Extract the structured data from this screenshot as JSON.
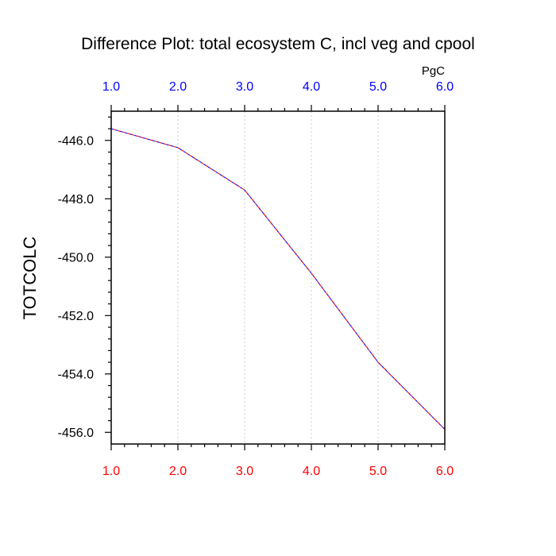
{
  "chart_data": {
    "type": "line",
    "title": "Difference Plot: total ecosystem C, incl veg and cpool",
    "ylabel": "TOTCOLC",
    "units": "PgC",
    "x": [
      1.0,
      2.0,
      3.0,
      4.0,
      5.0,
      6.0
    ],
    "xlim": [
      1.0,
      6.0
    ],
    "ylim": [
      -456.4,
      -445.0
    ],
    "x_ticks": [
      "1.0",
      "2.0",
      "3.0",
      "4.0",
      "5.0",
      "6.0"
    ],
    "y_tick_values": [
      -446.0,
      -448.0,
      -450.0,
      -452.0,
      -454.0,
      -456.0
    ],
    "y_ticks": [
      "-446.0",
      "-448.0",
      "-450.0",
      "-452.0",
      "-454.0",
      "-456.0"
    ],
    "series": [
      {
        "values": [
          -445.6,
          -446.25,
          -447.7,
          -450.55,
          -453.6,
          -455.9
        ]
      }
    ],
    "grid": "vertical dotted",
    "colors": {
      "top_axis_labels": "#0000ff",
      "bottom_axis_labels": "#ff0000",
      "line_dash_a": "#0000ff",
      "line_dash_b": "#ff0000",
      "grid": "#cccccc",
      "text": "#000000"
    }
  }
}
